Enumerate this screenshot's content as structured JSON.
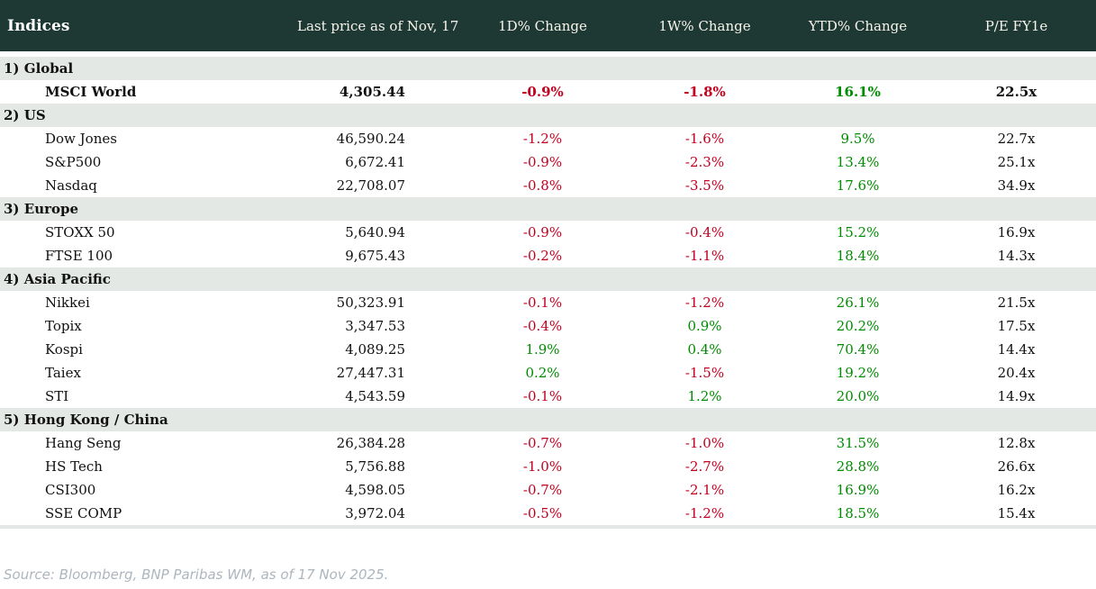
{
  "header": {
    "title": "Indices",
    "columns": [
      "Last price as of Nov, 17",
      "1D% Change",
      "1W% Change",
      "YTD% Change",
      "P/E FY1e"
    ]
  },
  "chart_data": {
    "type": "table",
    "columns": [
      "Indices",
      "Last price as of Nov, 17",
      "1D% Change",
      "1W% Change",
      "YTD% Change",
      "P/E FY1e"
    ],
    "sections": [
      {
        "label": "1) Global",
        "rows": [
          {
            "name": "MSCI World",
            "last_price": "4,305.44",
            "chg_1d": "-0.9%",
            "chg_1w": "-1.8%",
            "ytd": "16.1%",
            "pe": "22.5x",
            "bold": true
          }
        ]
      },
      {
        "label": "2) US",
        "rows": [
          {
            "name": "Dow Jones",
            "last_price": "46,590.24",
            "chg_1d": "-1.2%",
            "chg_1w": "-1.6%",
            "ytd": "9.5%",
            "pe": "22.7x",
            "bold": false
          },
          {
            "name": "S&P500",
            "last_price": "6,672.41",
            "chg_1d": "-0.9%",
            "chg_1w": "-2.3%",
            "ytd": "13.4%",
            "pe": "25.1x",
            "bold": false
          },
          {
            "name": "Nasdaq",
            "last_price": "22,708.07",
            "chg_1d": "-0.8%",
            "chg_1w": "-3.5%",
            "ytd": "17.6%",
            "pe": "34.9x",
            "bold": false
          }
        ]
      },
      {
        "label": "3) Europe",
        "rows": [
          {
            "name": "STOXX 50",
            "last_price": "5,640.94",
            "chg_1d": "-0.9%",
            "chg_1w": "-0.4%",
            "ytd": "15.2%",
            "pe": "16.9x",
            "bold": false
          },
          {
            "name": "FTSE 100",
            "last_price": "9,675.43",
            "chg_1d": "-0.2%",
            "chg_1w": "-1.1%",
            "ytd": "18.4%",
            "pe": "14.3x",
            "bold": false
          }
        ]
      },
      {
        "label": "4) Asia Pacific",
        "rows": [
          {
            "name": "Nikkei",
            "last_price": "50,323.91",
            "chg_1d": "-0.1%",
            "chg_1w": "-1.2%",
            "ytd": "26.1%",
            "pe": "21.5x",
            "bold": false
          },
          {
            "name": "Topix",
            "last_price": "3,347.53",
            "chg_1d": "-0.4%",
            "chg_1w": "0.9%",
            "ytd": "20.2%",
            "pe": "17.5x",
            "bold": false
          },
          {
            "name": "Kospi",
            "last_price": "4,089.25",
            "chg_1d": "1.9%",
            "chg_1w": "0.4%",
            "ytd": "70.4%",
            "pe": "14.4x",
            "bold": false
          },
          {
            "name": "Taiex",
            "last_price": "27,447.31",
            "chg_1d": "0.2%",
            "chg_1w": "-1.5%",
            "ytd": "19.2%",
            "pe": "20.4x",
            "bold": false
          },
          {
            "name": "STI",
            "last_price": "4,543.59",
            "chg_1d": "-0.1%",
            "chg_1w": "1.2%",
            "ytd": "20.0%",
            "pe": "14.9x",
            "bold": false
          }
        ]
      },
      {
        "label": "5) Hong Kong / China",
        "rows": [
          {
            "name": "Hang Seng",
            "last_price": "26,384.28",
            "chg_1d": "-0.7%",
            "chg_1w": "-1.0%",
            "ytd": "31.5%",
            "pe": "12.8x",
            "bold": false
          },
          {
            "name": "HS Tech",
            "last_price": "5,756.88",
            "chg_1d": "-1.0%",
            "chg_1w": "-2.7%",
            "ytd": "28.8%",
            "pe": "26.6x",
            "bold": false
          },
          {
            "name": "CSI300",
            "last_price": "4,598.05",
            "chg_1d": "-0.7%",
            "chg_1w": "-2.1%",
            "ytd": "16.9%",
            "pe": "16.2x",
            "bold": false
          },
          {
            "name": "SSE COMP",
            "last_price": "3,972.04",
            "chg_1d": "-0.5%",
            "chg_1w": "-1.2%",
            "ytd": "18.5%",
            "pe": "15.4x",
            "bold": false
          }
        ]
      }
    ]
  },
  "footer": {
    "source": "Source: Bloomberg, BNP Paribas WM, as of 17 Nov 2025."
  },
  "colors": {
    "header_bg": "#1e3934",
    "header_fg": "#f7f4ec",
    "section_bg": "#e4e8e4",
    "negative": "#c20020",
    "positive": "#008c00",
    "source_fg": "#adb5bd"
  }
}
